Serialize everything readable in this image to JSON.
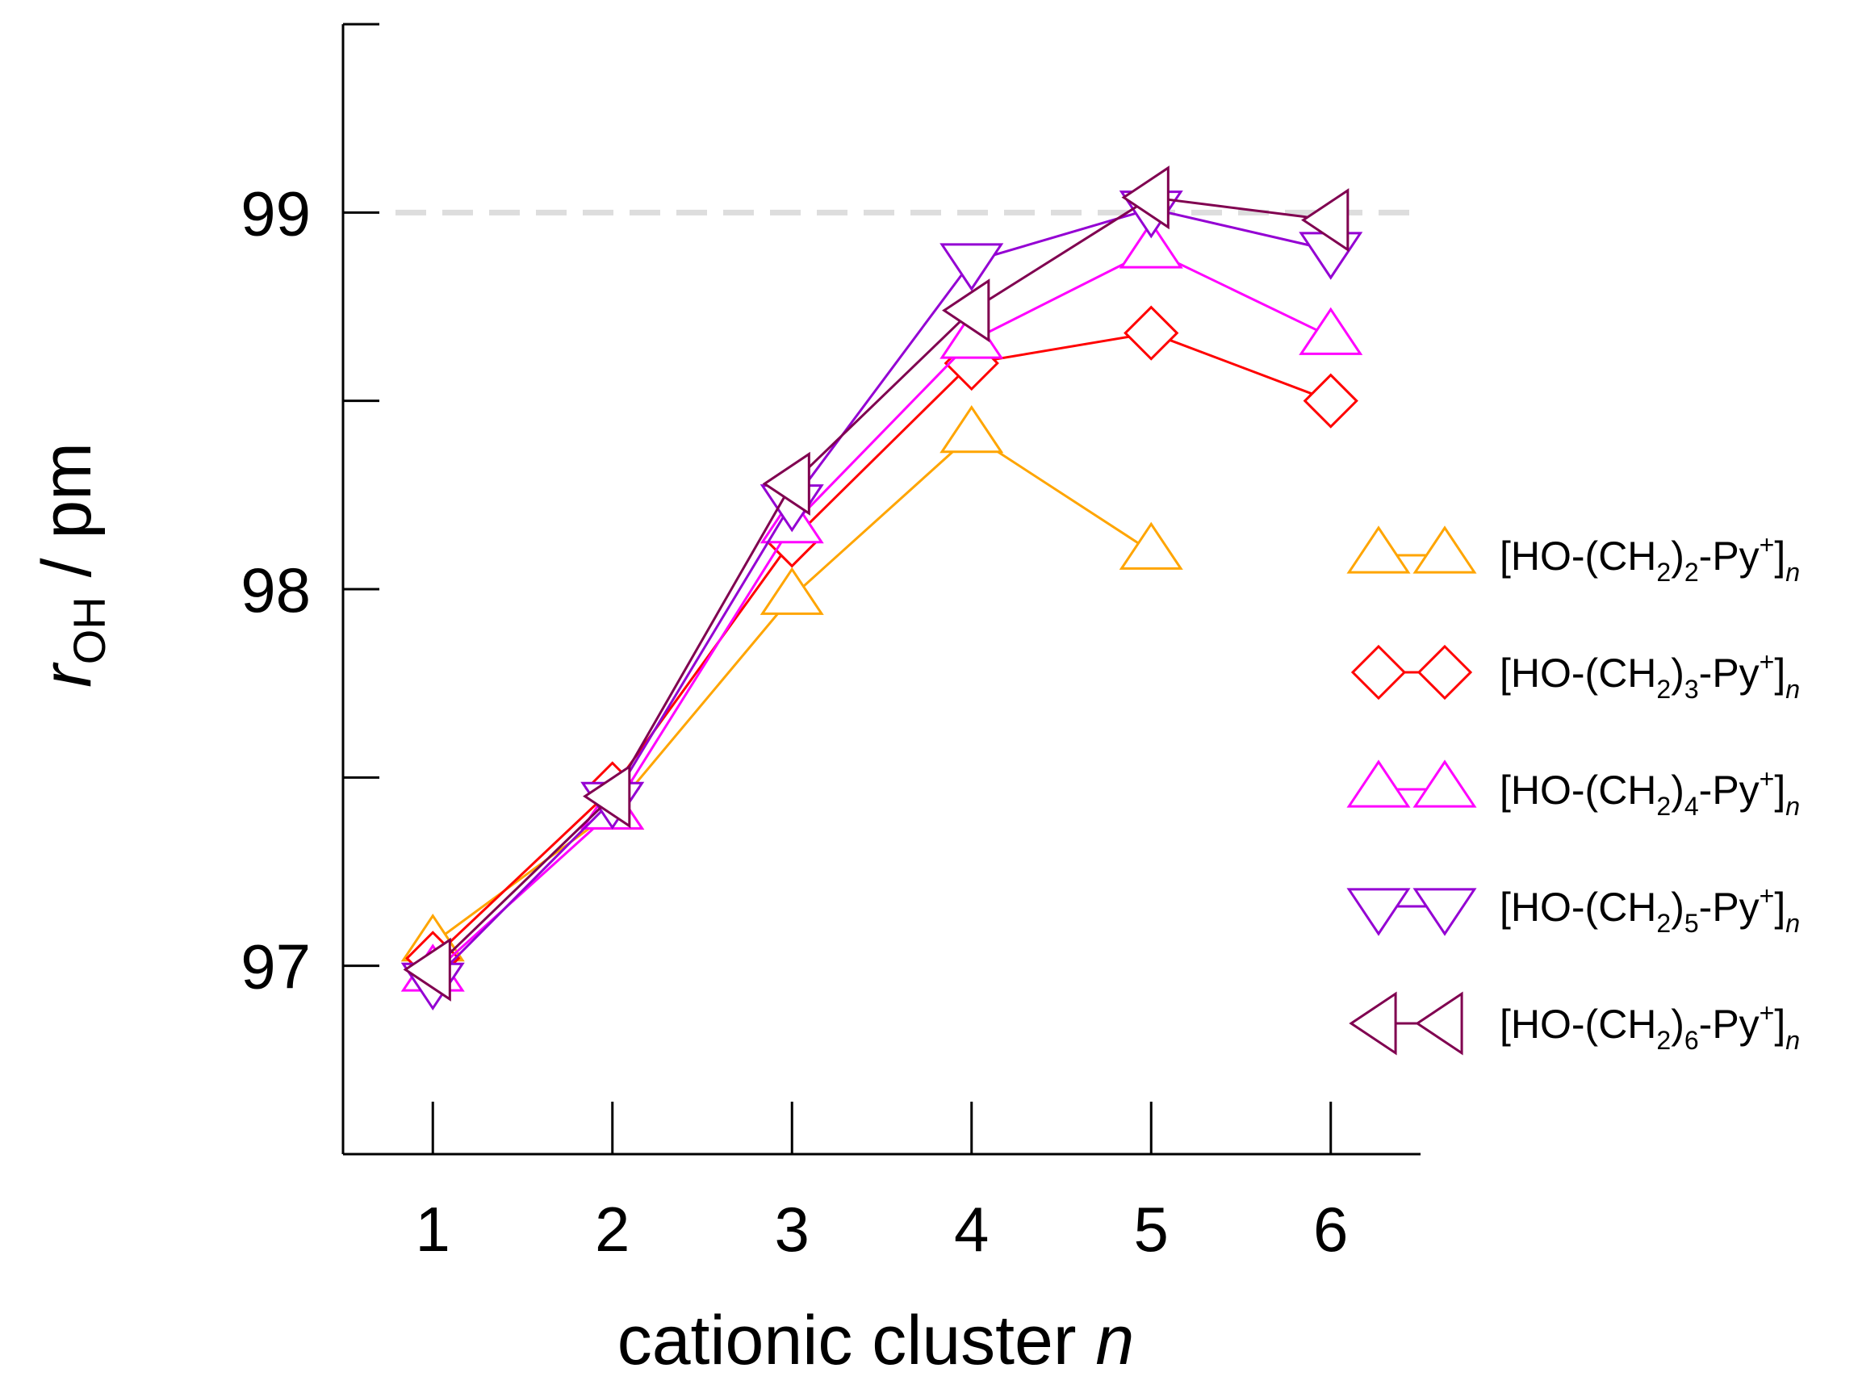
{
  "chart_data": {
    "type": "line",
    "xlabel": "cationic cluster",
    "xlabel_var": "n",
    "ylabel_var": "r",
    "ylabel_sub": "OH",
    "ylabel_unit": " / pm",
    "x": [
      1,
      2,
      3,
      4,
      5,
      6
    ],
    "xlim": [
      0.5,
      6.5
    ],
    "ylim": [
      96.5,
      99.5
    ],
    "x_ticks": [
      1,
      2,
      3,
      4,
      5,
      6
    ],
    "y_ticks": [
      97,
      98,
      99
    ],
    "y_minor_ticks": [
      97.5,
      98.5
    ],
    "reference_line": {
      "y": 99,
      "style": "dashed",
      "color": "#dddddd"
    },
    "grid": false,
    "legend_position": "right",
    "series": [
      {
        "label": {
          "pre": "[HO-(CH",
          "sub1": "2",
          "mid": ")",
          "sub2": "2",
          "post": "-Py",
          "sup": "+",
          "end": "]",
          "sub3": "n"
        },
        "color": "#ffa500",
        "marker": "triangle-up",
        "values": [
          97.06,
          97.41,
          97.98,
          98.41,
          98.1,
          null
        ]
      },
      {
        "label": {
          "pre": "[HO-(CH",
          "sub1": "2",
          "mid": ")",
          "sub2": "3",
          "post": "-Py",
          "sup": "+",
          "end": "]",
          "sub3": "n"
        },
        "color": "#ff0000",
        "marker": "diamond",
        "values": [
          97.02,
          97.47,
          98.13,
          98.6,
          98.68,
          98.5
        ]
      },
      {
        "label": {
          "pre": "[HO-(CH",
          "sub1": "2",
          "mid": ")",
          "sub2": "4",
          "post": "-Py",
          "sup": "+",
          "end": "]",
          "sub3": "n"
        },
        "color": "#ff00ff",
        "marker": "triangle-up",
        "values": [
          96.98,
          97.41,
          98.17,
          98.66,
          98.9,
          98.67
        ]
      },
      {
        "label": {
          "pre": "[HO-(CH",
          "sub1": "2",
          "mid": ")",
          "sub2": "5",
          "post": "-Py",
          "sup": "+",
          "end": "]",
          "sub3": "n"
        },
        "color": "#9400d3",
        "marker": "triangle-down",
        "values": [
          96.96,
          97.44,
          98.23,
          98.87,
          99.01,
          98.9
        ]
      },
      {
        "label": {
          "pre": "[HO-(CH",
          "sub1": "2",
          "mid": ")",
          "sub2": "6",
          "post": "-Py",
          "sup": "+",
          "end": "]",
          "sub3": "n"
        },
        "color": "#800050",
        "marker": "triangle-left",
        "values": [
          96.99,
          97.45,
          98.28,
          98.74,
          99.04,
          98.98
        ]
      }
    ]
  }
}
